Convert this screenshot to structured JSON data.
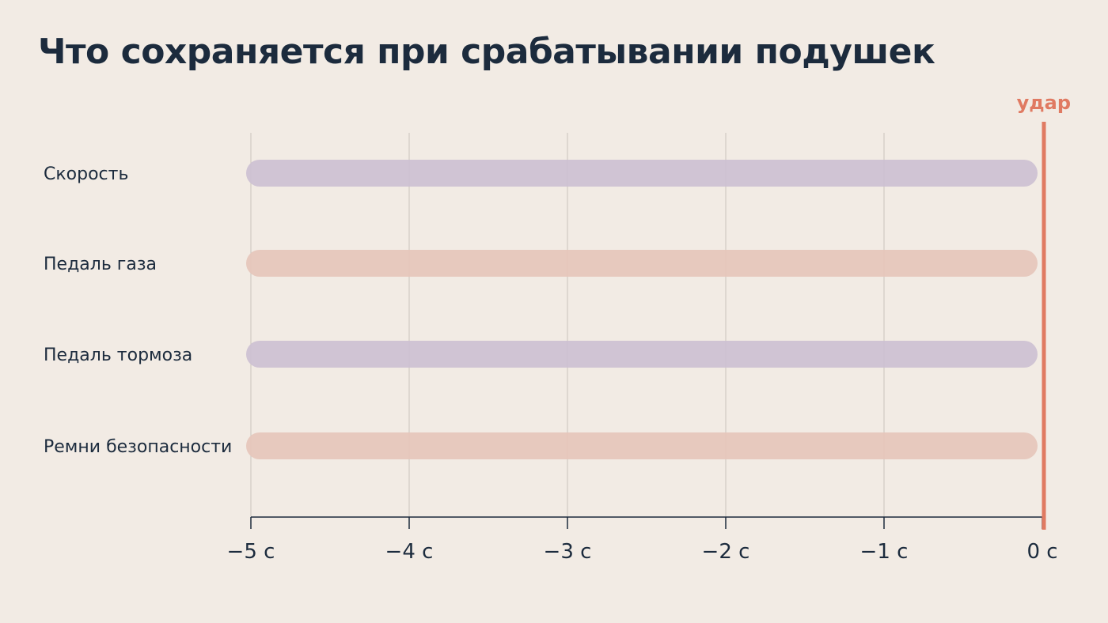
{
  "chart_data": {
    "type": "bar",
    "title": "Что сохраняется при срабатывании подушек",
    "categories": [
      "Скорость",
      "Педаль газа",
      "Педаль тормоза",
      "Ремни безопасности"
    ],
    "ranges": [
      {
        "category": "Скорость",
        "start": -5,
        "end": 0
      },
      {
        "category": "Педаль газа",
        "start": -5,
        "end": 0
      },
      {
        "category": "Педаль тормоза",
        "start": -5,
        "end": 0
      },
      {
        "category": "Ремни безопасности",
        "start": -5,
        "end": 0
      }
    ],
    "bar_colors": [
      "#cdc0d2",
      "#e6c6bb",
      "#cdc0d2",
      "#e6c6bb"
    ],
    "xlim": [
      -5,
      0
    ],
    "ticks": [
      -5,
      -4,
      -3,
      -2,
      -1,
      0
    ],
    "tick_labels": [
      "−5 с",
      "−4 с",
      "−3 с",
      "−2 с",
      "−1 с",
      "0 с"
    ],
    "marker": {
      "x": 0,
      "label": "удар",
      "color": "#e07a62"
    },
    "grid": true,
    "axis_color": "#1c2b3d",
    "grid_color": "#c9c3bd"
  }
}
